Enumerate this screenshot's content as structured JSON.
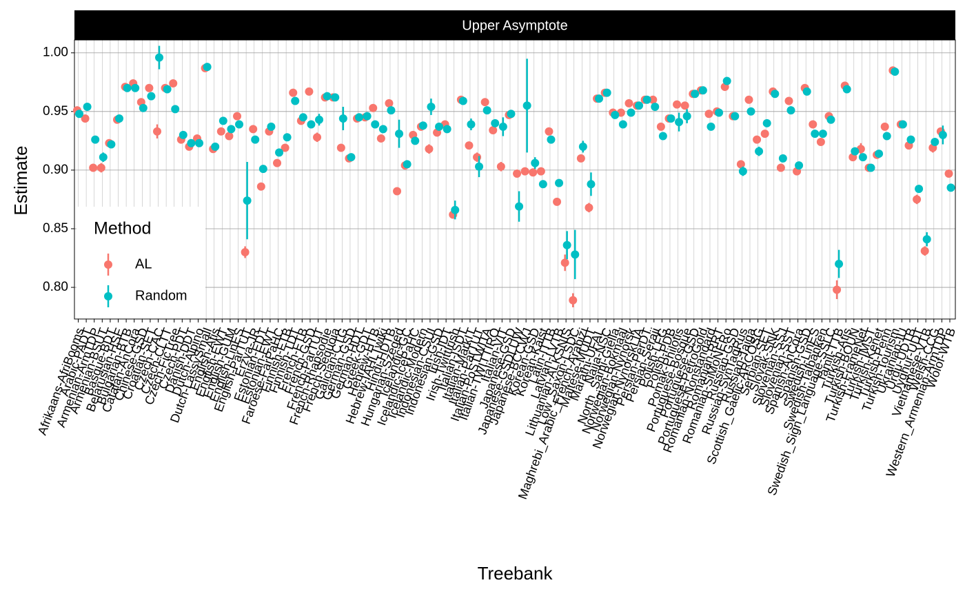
{
  "chart_data": {
    "type": "errorpoint",
    "strip_title": "Upper Asymptote",
    "x_label": "Treebank",
    "y_label": "Estimate",
    "legend_title": "Method",
    "legend_position": "bottom-left",
    "grid": true,
    "ylim": [
      0.773,
      1.011
    ],
    "yticks": [
      {
        "value": 0.8,
        "label": "0.80"
      },
      {
        "value": 0.85,
        "label": "0.85"
      },
      {
        "value": 0.9,
        "label": "0.90"
      },
      {
        "value": 0.95,
        "label": "0.95"
      },
      {
        "value": 1.0,
        "label": "1.00"
      }
    ],
    "categories": [
      "Afrikaans-AfriBooms",
      "Arabic-PADT",
      "Armenian-ArmTDP",
      "Armenian-BSUT",
      "Basque-BDT",
      "Belarusian-HSE",
      "Bulgarian-BTB",
      "Catalan-AnCora",
      "Chinese-GSD",
      "Croatian-SET",
      "Czech-CAC",
      "Czech-CLTT",
      "Czech-FicTree",
      "Czech-PDT",
      "Danish-DDT",
      "Dutch-Alpino",
      "Dutch-LassySmall",
      "English-Atis",
      "English-EWT",
      "English-GUM",
      "English-LinES",
      "English-ParTUT",
      "Erzya-JR",
      "Estonian-EDT",
      "Estonian-EWT",
      "Faroese-FarPaHC",
      "Finnish-FTB",
      "Finnish-TDT",
      "French-FTB",
      "French-GSD",
      "French-ParTUT",
      "French-Rhapsodie",
      "French-Sequoia",
      "Galician-CTG",
      "German-GSD",
      "German-HDT",
      "Greek-GDT",
      "Hebrew-HTB",
      "Hebrew-IAHLTwiki",
      "Hindi-HDTB",
      "Hungarian-Szeged",
      "Icelandic-GC",
      "Icelandic-IcePaHC",
      "Icelandic-Modern",
      "Indonesian-CSUI",
      "Indonesian-GSD",
      "Irish-IDT",
      "Irish-TwittIrish",
      "Italian-ISDT",
      "Italian-MarkIT",
      "Italian-ParTUT",
      "Italian-PoSTWITA",
      "Italian-TWITTIRO",
      "Italian-VIT",
      "Japanese-GSD",
      "Japanese-GSDLUW",
      "Japanese-BCCWJ",
      "Korean-GSD",
      "Korean-Kaist",
      "Latin-ITTB",
      "Latvian-LVTB",
      "Lithuanian-ALKSNIS",
      "Low_Saxon-LSDC",
      "Maghrebi_Arabic_French-Arabizi",
      "Maltese-MUDT",
      "Marathi-UFAL",
      "Naija-NSC",
      "North_Sami-Giella",
      "Norwegian-Bokmaal",
      "Norwegian-Nynorsk",
      "Norwegian-NynorskLIA",
      "Persian-PerDT",
      "Persian-Seraji",
      "Polish-LFG",
      "Polish-PDB",
      "Pomak-Philotis",
      "Portuguese-Bosque",
      "Portuguese-GSD",
      "Portuguese-PetroGold",
      "Romanian-Nonstandard",
      "Romanian-RRT",
      "Romanian-SiMoNERo",
      "Russian-GSD",
      "Russian-SynTagRus",
      "Russian-Taiga",
      "Scottish_Gaelic-ARCOSG",
      "Serbian-SET",
      "Slovak-SNK",
      "Slovenian-SSJ",
      "Slovenian-SST",
      "Spanish-AnCora",
      "Spanish-GSD",
      "Swedish-LinES",
      "Swedish-Talbanken",
      "Swedish_Sign_Language-SSLC",
      "Tamil-TTB",
      "Turkish-Atis",
      "Turkish-BOUN",
      "Turkish-FrameNet",
      "Turkish-IMST",
      "Turkish-Kenet",
      "Turkish-Penn",
      "Turkish-Tourism",
      "Ukrainian-IU",
      "Urdu-UDTB",
      "Uyghur-UDT",
      "Vietnamese-VTB",
      "Welsh-CCG",
      "Western_Armenian-ArmTDP",
      "Wolof-WTB"
    ],
    "series": [
      {
        "name": "AL",
        "color": "#F8766D",
        "values": [
          0.951,
          0.944,
          0.902,
          0.902,
          0.923,
          0.943,
          0.971,
          0.974,
          0.958,
          0.97,
          0.933,
          0.97,
          0.974,
          0.926,
          0.92,
          0.927,
          0.987,
          0.918,
          0.933,
          0.929,
          0.946,
          0.83,
          0.935,
          0.886,
          0.933,
          0.906,
          0.919,
          0.966,
          0.942,
          0.967,
          0.928,
          0.962,
          0.962,
          0.919,
          0.91,
          0.944,
          0.945,
          0.953,
          0.927,
          0.957,
          0.882,
          0.904,
          0.93,
          0.937,
          0.918,
          0.932,
          0.939,
          0.862,
          0.96,
          0.921,
          0.911,
          0.958,
          0.934,
          0.903,
          0.947,
          0.897,
          0.899,
          0.898,
          0.899,
          0.933,
          0.873,
          0.821,
          0.789,
          0.91,
          0.868,
          0.961,
          0.966,
          0.949,
          0.949,
          0.957,
          0.955,
          0.96,
          0.96,
          0.937,
          0.944,
          0.956,
          0.955,
          0.965,
          0.968,
          0.948,
          0.95,
          0.971,
          0.946,
          0.905,
          0.96,
          0.926,
          0.931,
          0.967,
          0.902,
          0.959,
          0.899,
          0.97,
          0.939,
          0.924,
          0.946,
          0.798,
          0.972,
          0.911,
          0.918,
          0.902,
          0.913,
          0.937,
          0.985,
          0.939,
          0.921,
          0.875,
          0.831,
          0.919,
          0.933,
          0.897
        ],
        "errors": [
          0.003,
          0.003,
          0.003,
          0.004,
          0.003,
          0.003,
          0.003,
          0.003,
          0.003,
          0.003,
          0.006,
          0.003,
          0.003,
          0.003,
          0.003,
          0.003,
          0.003,
          0.003,
          0.003,
          0.003,
          0.003,
          0.005,
          0.003,
          0.003,
          0.003,
          0.003,
          0.003,
          0.003,
          0.003,
          0.003,
          0.004,
          0.003,
          0.003,
          0.003,
          0.003,
          0.003,
          0.003,
          0.003,
          0.003,
          0.003,
          0.003,
          0.003,
          0.003,
          0.003,
          0.004,
          0.003,
          0.003,
          0.003,
          0.003,
          0.003,
          0.004,
          0.003,
          0.003,
          0.004,
          0.003,
          0.003,
          0.003,
          0.003,
          0.003,
          0.003,
          0.003,
          0.007,
          0.006,
          0.003,
          0.004,
          0.003,
          0.003,
          0.003,
          0.003,
          0.003,
          0.003,
          0.003,
          0.003,
          0.003,
          0.003,
          0.003,
          0.003,
          0.003,
          0.003,
          0.003,
          0.003,
          0.003,
          0.003,
          0.003,
          0.003,
          0.003,
          0.003,
          0.003,
          0.003,
          0.003,
          0.003,
          0.003,
          0.003,
          0.003,
          0.003,
          0.008,
          0.003,
          0.003,
          0.005,
          0.003,
          0.003,
          0.003,
          0.003,
          0.003,
          0.003,
          0.004,
          0.004,
          0.004,
          0.003,
          0.003
        ]
      },
      {
        "name": "Random",
        "color": "#00BFC4",
        "values": [
          0.948,
          0.954,
          0.926,
          0.911,
          0.922,
          0.944,
          0.97,
          0.97,
          0.953,
          0.963,
          0.996,
          0.969,
          0.952,
          0.93,
          0.923,
          0.923,
          0.988,
          0.92,
          0.942,
          0.935,
          0.939,
          0.874,
          0.926,
          0.901,
          0.937,
          0.915,
          0.928,
          0.959,
          0.945,
          0.939,
          0.943,
          0.963,
          0.962,
          0.944,
          0.911,
          0.945,
          0.946,
          0.939,
          0.935,
          0.951,
          0.931,
          0.905,
          0.925,
          0.938,
          0.954,
          0.937,
          0.935,
          0.866,
          0.959,
          0.939,
          0.903,
          0.951,
          0.94,
          0.937,
          0.948,
          0.869,
          0.955,
          0.906,
          0.888,
          0.926,
          0.889,
          0.836,
          0.828,
          0.92,
          0.888,
          0.961,
          0.966,
          0.947,
          0.939,
          0.949,
          0.955,
          0.96,
          0.954,
          0.929,
          0.944,
          0.941,
          0.946,
          0.965,
          0.968,
          0.937,
          0.949,
          0.976,
          0.946,
          0.899,
          0.95,
          0.916,
          0.94,
          0.965,
          0.91,
          0.951,
          0.904,
          0.967,
          0.931,
          0.931,
          0.943,
          0.82,
          0.969,
          0.916,
          0.911,
          0.902,
          0.914,
          0.929,
          0.984,
          0.939,
          0.926,
          0.884,
          0.841,
          0.924,
          0.93,
          0.885
        ],
        "errors": [
          0.003,
          0.003,
          0.003,
          0.004,
          0.003,
          0.003,
          0.003,
          0.003,
          0.003,
          0.003,
          0.01,
          0.003,
          0.003,
          0.003,
          0.003,
          0.003,
          0.003,
          0.003,
          0.003,
          0.003,
          0.003,
          0.033,
          0.003,
          0.003,
          0.003,
          0.003,
          0.003,
          0.003,
          0.003,
          0.003,
          0.005,
          0.003,
          0.003,
          0.01,
          0.003,
          0.003,
          0.003,
          0.003,
          0.003,
          0.003,
          0.012,
          0.003,
          0.003,
          0.003,
          0.007,
          0.003,
          0.003,
          0.008,
          0.003,
          0.005,
          0.009,
          0.003,
          0.003,
          0.008,
          0.003,
          0.013,
          0.04,
          0.005,
          0.003,
          0.003,
          0.003,
          0.012,
          0.021,
          0.005,
          0.01,
          0.003,
          0.003,
          0.003,
          0.003,
          0.003,
          0.003,
          0.003,
          0.003,
          0.003,
          0.003,
          0.008,
          0.006,
          0.003,
          0.003,
          0.003,
          0.003,
          0.003,
          0.003,
          0.004,
          0.003,
          0.004,
          0.003,
          0.003,
          0.003,
          0.003,
          0.003,
          0.003,
          0.003,
          0.003,
          0.003,
          0.012,
          0.003,
          0.003,
          0.003,
          0.003,
          0.003,
          0.003,
          0.003,
          0.003,
          0.003,
          0.003,
          0.006,
          0.003,
          0.008,
          0.003
        ]
      }
    ]
  }
}
